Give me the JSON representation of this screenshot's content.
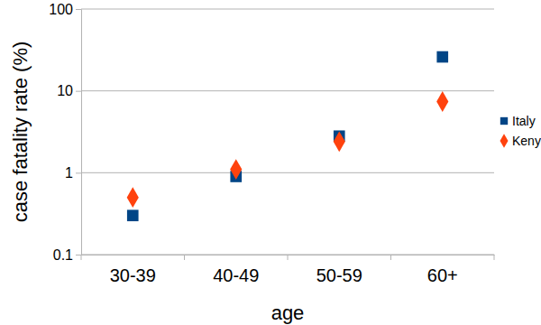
{
  "chart_data": {
    "type": "scatter",
    "x_label": "age",
    "y_label": "case fatality rate (%)",
    "categories": [
      "30-39",
      "40-49",
      "50-59",
      "60+"
    ],
    "series": [
      {
        "name": "Italy",
        "color": "#004586",
        "marker": "square",
        "values": [
          0.3,
          0.9,
          2.8,
          26
        ]
      },
      {
        "name": "Kenya",
        "color": "#ff420e",
        "marker": "diamond",
        "values": [
          0.5,
          1.1,
          2.4,
          7.4
        ]
      }
    ],
    "ylim": [
      0.1,
      100
    ],
    "yticks": [
      0.1,
      1,
      10,
      100
    ],
    "log": "y",
    "grid": true,
    "legend": "right"
  }
}
